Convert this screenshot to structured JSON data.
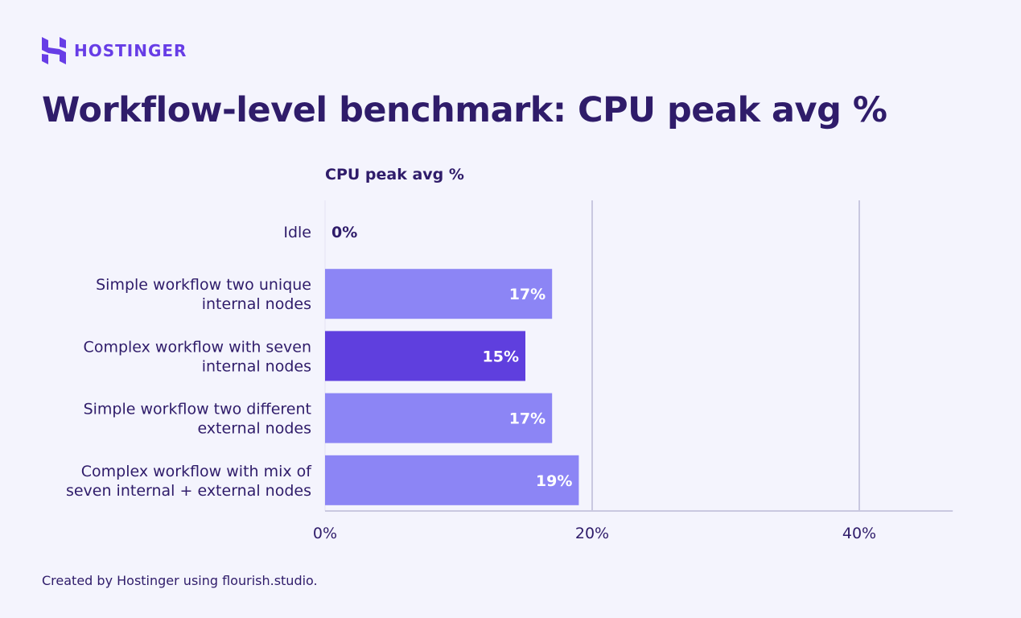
{
  "brand": {
    "name": "HOSTINGER",
    "color": "#673de6"
  },
  "title": "Workflow-level benchmark: CPU peak avg %",
  "footer": "Created by Hostinger using flourish.studio.",
  "chart_data": {
    "type": "bar",
    "orientation": "horizontal",
    "title": "Workflow-level benchmark: CPU peak avg %",
    "series_label": "CPU peak avg %",
    "categories": [
      [
        "Idle"
      ],
      [
        "Simple workflow two unique",
        "internal nodes"
      ],
      [
        "Complex workflow with seven",
        "internal nodes"
      ],
      [
        "Simple workflow two different",
        "external nodes"
      ],
      [
        "Complex workflow with mix of",
        "seven internal + external nodes"
      ]
    ],
    "values": [
      0,
      17,
      15,
      17,
      19
    ],
    "data_labels": [
      "0%",
      "17%",
      "15%",
      "17%",
      "19%"
    ],
    "bar_colors": [
      "#8c85f5",
      "#8c85f5",
      "#5f3fde",
      "#8c85f5",
      "#8c85f5"
    ],
    "xlim": [
      0,
      47
    ],
    "xticks": [
      0,
      20,
      40
    ],
    "xtick_labels": [
      "0%",
      "20%",
      "40%"
    ],
    "grid": true,
    "legend": "none"
  }
}
